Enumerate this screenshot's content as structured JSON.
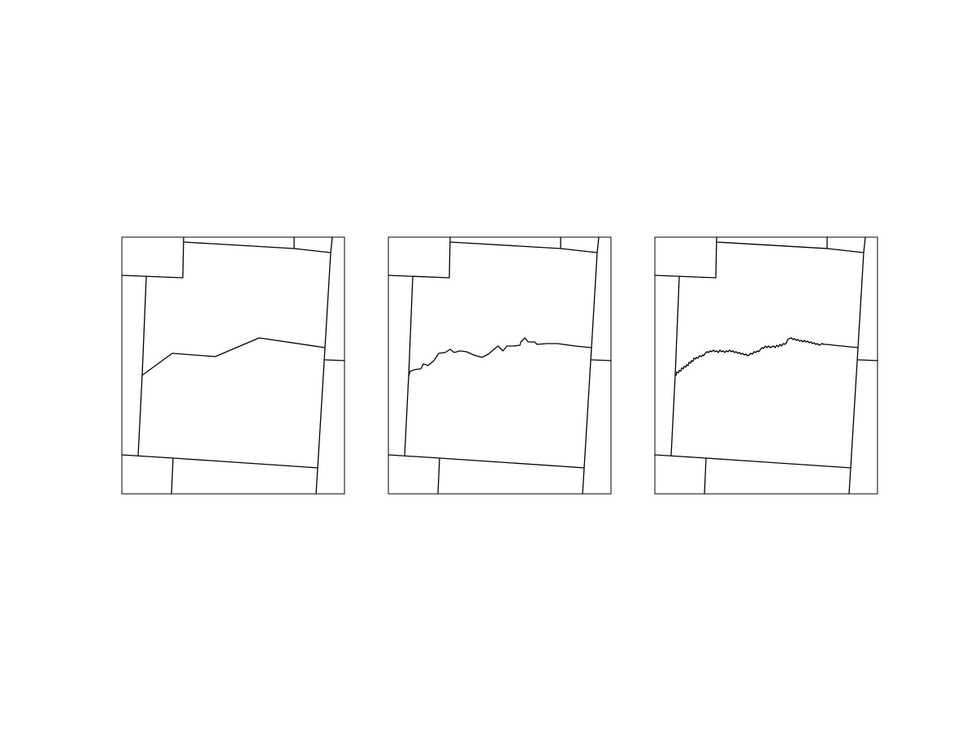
{
  "figure": {
    "background": "#ffffff",
    "stroke_color": "#000000",
    "panel_count": 3
  },
  "panels": [
    {
      "label": "",
      "boundary_detail": "coarse"
    },
    {
      "label": "",
      "boundary_detail": "medium"
    },
    {
      "label": "",
      "boundary_detail": "fine"
    }
  ]
}
